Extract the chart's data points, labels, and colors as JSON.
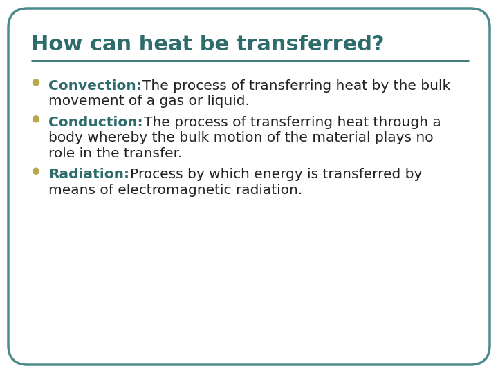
{
  "title": "How can heat be transferred?",
  "title_color": "#2E6B6B",
  "title_fontsize": 22,
  "separator_color": "#2E6B6B",
  "background_color": "#FFFFFF",
  "border_color": "#4A8A8A",
  "bullet_color": "#B8A84A",
  "bullet_items": [
    {
      "bold_text": "Convection:",
      "regular_text": " The process of transferring heat by the bulk movement of a gas or liquid."
    },
    {
      "bold_text": "Conduction:",
      "regular_text": " The process of transferring heat through a body whereby the bulk motion of the material plays no role in the transfer."
    },
    {
      "bold_text": "Radiation:",
      "regular_text": " Process by which energy is transferred by means of electromagnetic radiation."
    }
  ],
  "bold_color": "#2E6B6B",
  "regular_color": "#222222",
  "body_fontsize": 14.5
}
